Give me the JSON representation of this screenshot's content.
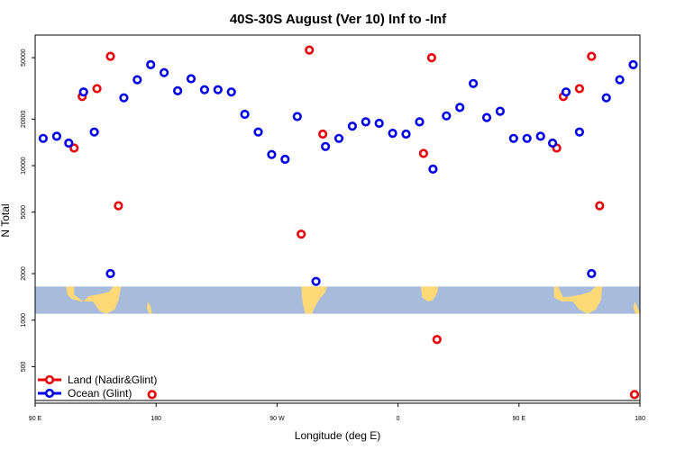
{
  "chart_data": {
    "type": "scatter",
    "title": "40S-30S August (Ver 10)   Inf to -Inf",
    "xlabel": "Longitude (deg E)",
    "ylabel": "N Total",
    "y_scale": "log",
    "xlim": [
      0,
      450
    ],
    "ylim": [
      290,
      70000
    ],
    "x_ticks": [
      {
        "value": 0,
        "label": "90 E"
      },
      {
        "value": 90,
        "label": "180"
      },
      {
        "value": 180,
        "label": "90 W"
      },
      {
        "value": 270,
        "label": "0"
      },
      {
        "value": 360,
        "label": "90 E"
      },
      {
        "value": 450,
        "label": "180"
      }
    ],
    "y_ticks": [
      {
        "value": 500,
        "label": "500"
      },
      {
        "value": 1000,
        "label": "1000"
      },
      {
        "value": 2000,
        "label": "2000"
      },
      {
        "value": 5000,
        "label": "5000"
      },
      {
        "value": 10000,
        "label": "10000"
      },
      {
        "value": 20000,
        "label": "20000"
      },
      {
        "value": 50000,
        "label": "50000"
      }
    ],
    "map_strip": {
      "y_range": [
        1100,
        1650
      ],
      "ocean_color": "#a7bcdc",
      "land_color": "#ffd976"
    },
    "legend_position": "bottom-left",
    "series": [
      {
        "name": "Land (Nadir&Glint)",
        "color": "#e8000b",
        "points": [
          {
            "x": 29,
            "y": 13000
          },
          {
            "x": 35,
            "y": 28000
          },
          {
            "x": 46,
            "y": 31500
          },
          {
            "x": 56,
            "y": 51000
          },
          {
            "x": 62,
            "y": 5500
          },
          {
            "x": 87,
            "y": 330
          },
          {
            "x": 198,
            "y": 3600
          },
          {
            "x": 204,
            "y": 56000
          },
          {
            "x": 214,
            "y": 16000
          },
          {
            "x": 289,
            "y": 12000
          },
          {
            "x": 295,
            "y": 50000
          },
          {
            "x": 299,
            "y": 750
          },
          {
            "x": 388,
            "y": 13000
          },
          {
            "x": 393,
            "y": 28000
          },
          {
            "x": 405,
            "y": 31500
          },
          {
            "x": 414,
            "y": 51000
          },
          {
            "x": 420,
            "y": 5500
          },
          {
            "x": 446,
            "y": 330
          }
        ]
      },
      {
        "name": "Ocean (Glint)",
        "color": "#0000e6",
        "points": [
          {
            "x": 6,
            "y": 15000
          },
          {
            "x": 16,
            "y": 15500
          },
          {
            "x": 25,
            "y": 14000
          },
          {
            "x": 36,
            "y": 30000
          },
          {
            "x": 44,
            "y": 16500
          },
          {
            "x": 56,
            "y": 2000
          },
          {
            "x": 66,
            "y": 27500
          },
          {
            "x": 76,
            "y": 36000
          },
          {
            "x": 86,
            "y": 45000
          },
          {
            "x": 96,
            "y": 40000
          },
          {
            "x": 106,
            "y": 30500
          },
          {
            "x": 116,
            "y": 36500
          },
          {
            "x": 126,
            "y": 31000
          },
          {
            "x": 136,
            "y": 31000
          },
          {
            "x": 146,
            "y": 30000
          },
          {
            "x": 156,
            "y": 21500
          },
          {
            "x": 166,
            "y": 16500
          },
          {
            "x": 176,
            "y": 11800
          },
          {
            "x": 186,
            "y": 11000
          },
          {
            "x": 195,
            "y": 20800
          },
          {
            "x": 209,
            "y": 1780
          },
          {
            "x": 216,
            "y": 13300
          },
          {
            "x": 226,
            "y": 15000
          },
          {
            "x": 236,
            "y": 18000
          },
          {
            "x": 246,
            "y": 19200
          },
          {
            "x": 256,
            "y": 18800
          },
          {
            "x": 266,
            "y": 16200
          },
          {
            "x": 276,
            "y": 16000
          },
          {
            "x": 286,
            "y": 19200
          },
          {
            "x": 296,
            "y": 9500
          },
          {
            "x": 306,
            "y": 21000
          },
          {
            "x": 316,
            "y": 23800
          },
          {
            "x": 326,
            "y": 34000
          },
          {
            "x": 336,
            "y": 20500
          },
          {
            "x": 346,
            "y": 22500
          },
          {
            "x": 356,
            "y": 15000
          },
          {
            "x": 366,
            "y": 15000
          },
          {
            "x": 376,
            "y": 15500
          },
          {
            "x": 385,
            "y": 14000
          },
          {
            "x": 395,
            "y": 30000
          },
          {
            "x": 405,
            "y": 16500
          },
          {
            "x": 414,
            "y": 2000
          },
          {
            "x": 425,
            "y": 27500
          },
          {
            "x": 435,
            "y": 36000
          },
          {
            "x": 445,
            "y": 45000
          }
        ]
      }
    ]
  }
}
